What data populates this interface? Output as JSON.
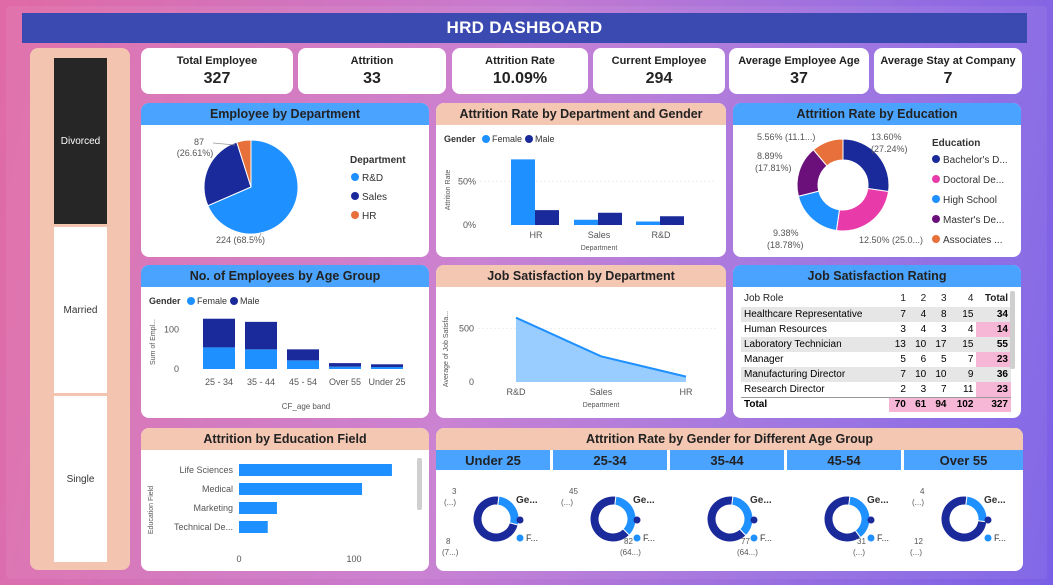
{
  "title": "HRD DASHBOARD",
  "slicer": {
    "items": [
      "Divorced",
      "Married",
      "Single"
    ],
    "selected": "Divorced"
  },
  "kpis": [
    {
      "label": "Total Employee",
      "value": "327"
    },
    {
      "label": "Attrition",
      "value": "33"
    },
    {
      "label": "Attrition Rate",
      "value": "10.09%"
    },
    {
      "label": "Current Employee",
      "value": "294"
    },
    {
      "label": "Average Employee Age",
      "value": "37"
    },
    {
      "label": "Average Stay at Company",
      "value": "7"
    }
  ],
  "colors": {
    "female": "#1e90ff",
    "male": "#1b2a9a",
    "hr": "#e8703a",
    "pink": "#e83aa9",
    "purple": "#6b0f7a",
    "header_blue": "#4aa3ff",
    "header_peach": "#f4c7b3"
  },
  "emp_by_dept": {
    "title": "Employee by Department",
    "legend_title": "Department",
    "labels": {
      "top": "87",
      "top_pct": "(26.61%)",
      "bottom": "224 (68.5%)"
    },
    "chart_data": {
      "type": "pie",
      "categories": [
        "R&D",
        "Sales",
        "HR"
      ],
      "values": [
        224,
        87,
        16
      ],
      "colors": [
        "#1e90ff",
        "#1b2a9a",
        "#e8703a"
      ]
    }
  },
  "attr_dept_gender": {
    "title": "Attrition Rate by Department and Gender",
    "legend_label": "Gender",
    "ylabel": "Attrition Rate",
    "xlabel": "Department",
    "yticks": [
      "50%",
      "0%"
    ],
    "chart_data": {
      "type": "bar",
      "categories": [
        "HR",
        "Sales",
        "R&D"
      ],
      "series": [
        {
          "name": "Female",
          "values": [
            75,
            6,
            4
          ]
        },
        {
          "name": "Male",
          "values": [
            17,
            14,
            10
          ]
        }
      ],
      "ylim": [
        0,
        80
      ]
    }
  },
  "attr_edu": {
    "title": "Attrition Rate by Education",
    "legend_title": "Education",
    "legend": [
      "Bachelor's D...",
      "Doctoral De...",
      "High School",
      "Master's De...",
      "Associates ..."
    ],
    "labels": [
      {
        "a": "5.56% (11.1...)",
        "b": ""
      },
      {
        "a": "13.60%",
        "b": "(27.24%)"
      },
      {
        "a": "8.89%",
        "b": "(17.81%)"
      },
      {
        "a": "9.38%",
        "b": "(18.78%)"
      },
      {
        "a": "12.50% (25.0...)",
        "b": ""
      }
    ],
    "chart_data": {
      "type": "pie",
      "categories": [
        "Bachelor's Degree",
        "Doctoral Degree",
        "High School",
        "Master's Degree",
        "Associates Degree"
      ],
      "values": [
        27.24,
        25.0,
        18.78,
        17.81,
        11.1
      ],
      "colors": [
        "#1b2a9a",
        "#e83aa9",
        "#1e90ff",
        "#6b0f7a",
        "#e8703a"
      ]
    }
  },
  "emp_age_group": {
    "title": "No. of Employees by Age Group",
    "legend_label": "Gender",
    "ylabel": "Sum of Empl...",
    "xlabel": "CF_age band",
    "yticks": [
      "100",
      "0"
    ],
    "chart_data": {
      "type": "bar",
      "categories": [
        "25 - 34",
        "35 - 44",
        "45 - 54",
        "Over 55",
        "Under 25"
      ],
      "series": [
        {
          "name": "Female",
          "values": [
            55,
            50,
            22,
            6,
            5
          ]
        },
        {
          "name": "Male",
          "values": [
            73,
            70,
            28,
            9,
            7
          ]
        }
      ],
      "ylim": [
        0,
        140
      ]
    }
  },
  "job_sat_dept": {
    "title": "Job Satisfaction by Department",
    "ylabel": "Average of Job Satisfa...",
    "xlabel": "Department",
    "yticks": [
      "500",
      "0"
    ],
    "chart_data": {
      "type": "area",
      "categories": [
        "R&D",
        "Sales",
        "HR"
      ],
      "values": [
        600,
        240,
        50
      ],
      "ylim": [
        0,
        700
      ]
    }
  },
  "job_sat_rating": {
    "title": "Job Satisfaction Rating",
    "columns": [
      "Job Role",
      "1",
      "2",
      "3",
      "4",
      "Total"
    ],
    "rows": [
      [
        "Healthcare Representative",
        "7",
        "4",
        "8",
        "15",
        "34"
      ],
      [
        "Human Resources",
        "3",
        "4",
        "3",
        "4",
        "14"
      ],
      [
        "Laboratory Technician",
        "13",
        "10",
        "17",
        "15",
        "55"
      ],
      [
        "Manager",
        "5",
        "6",
        "5",
        "7",
        "23"
      ],
      [
        "Manufacturing Director",
        "7",
        "10",
        "10",
        "9",
        "36"
      ],
      [
        "Research Director",
        "2",
        "3",
        "7",
        "11",
        "23"
      ]
    ],
    "total": [
      "Total",
      "70",
      "61",
      "94",
      "102",
      "327"
    ]
  },
  "attr_edu_field": {
    "title": "Attrition by Education Field",
    "ylabel": "Education Field",
    "xticks": [
      "0",
      "100"
    ],
    "chart_data": {
      "type": "bar",
      "categories": [
        "Life Sciences",
        "Medical",
        "Marketing",
        "Technical De..."
      ],
      "values": [
        133,
        107,
        33,
        25
      ],
      "xlim": [
        0,
        160
      ]
    }
  },
  "attr_gender_age": {
    "title": "Attrition Rate by Gender for Different Age Group",
    "legend_label": "Ge...",
    "legend_f": "F...",
    "groups": [
      {
        "name": "Under 25",
        "top": "3",
        "top2": "(...)",
        "bot": "8",
        "bot2": "(7...)",
        "female": 3,
        "male": 8
      },
      {
        "name": "25-34",
        "top": "45",
        "top2": "(...)",
        "bot": "82",
        "bot2": "(64...)",
        "female": 45,
        "male": 82
      },
      {
        "name": "35-44",
        "top": "",
        "top2": "",
        "bot": "77",
        "bot2": "(64...)",
        "female": 43,
        "male": 77
      },
      {
        "name": "45-54",
        "top": "",
        "top2": "",
        "bot": "31",
        "bot2": "(...)",
        "female": 19,
        "male": 31
      },
      {
        "name": "Over 55",
        "top": "4",
        "top2": "(...)",
        "bot": "12",
        "bot2": "(...)",
        "female": 4,
        "male": 12
      }
    ]
  }
}
